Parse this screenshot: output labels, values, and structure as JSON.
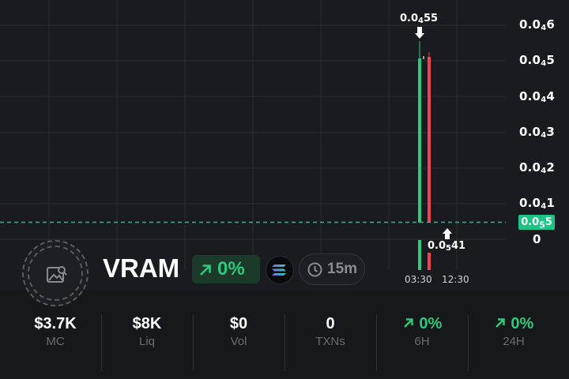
{
  "chart": {
    "price_labels": [
      {
        "lead": "0.0",
        "sub": "4",
        "tail": "6"
      },
      {
        "lead": "0.0",
        "sub": "4",
        "tail": "5"
      },
      {
        "lead": "0.0",
        "sub": "4",
        "tail": "4"
      },
      {
        "lead": "0.0",
        "sub": "4",
        "tail": "3"
      },
      {
        "lead": "0.0",
        "sub": "4",
        "tail": "2"
      },
      {
        "lead": "0.0",
        "sub": "4",
        "tail": "1"
      },
      {
        "lead": "0",
        "sub": "",
        "tail": ""
      }
    ],
    "current_price": {
      "lead": "0.0",
      "sub": "5",
      "tail": "5"
    },
    "high_annotation": {
      "lead": "0.0",
      "sub": "4",
      "tail": "55"
    },
    "low_annotation": {
      "lead": "0.0",
      "sub": "5",
      "tail": "41"
    },
    "time_labels": [
      "03:30",
      "12:30"
    ],
    "colors": {
      "up": "#2ec97a",
      "down": "#f0434f",
      "current_line": "#1cc586",
      "grid": "#2a2b30"
    }
  },
  "token": {
    "ticker": "VRAM",
    "change": "0%",
    "chain_icon": "solana-icon",
    "timeframe": "15m"
  },
  "stats": [
    {
      "value": "$3.7K",
      "label": "MC",
      "positive": false
    },
    {
      "value": "$8K",
      "label": "Liq",
      "positive": false
    },
    {
      "value": "$0",
      "label": "Vol",
      "positive": false
    },
    {
      "value": "0",
      "label": "TXNs",
      "positive": false
    },
    {
      "value": "0%",
      "label": "6H",
      "positive": true
    },
    {
      "value": "0%",
      "label": "24H",
      "positive": true
    }
  ]
}
